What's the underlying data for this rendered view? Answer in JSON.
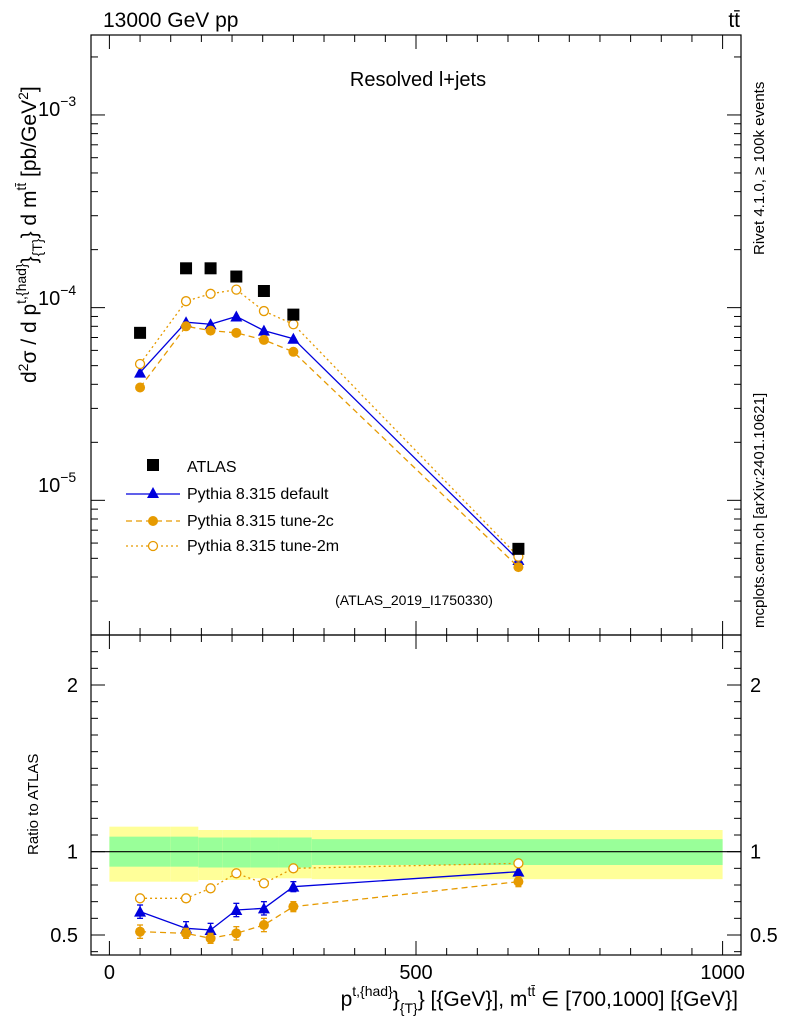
{
  "header": {
    "left": "13000 GeV pp",
    "right": "tt̄"
  },
  "side_labels": {
    "rivet": "Rivet 4.1.0, ≥ 100k events",
    "mcplots": "mcplots.cern.ch [arXiv:2401.10621]"
  },
  "colors": {
    "atlas": "#000000",
    "default": "#0000dd",
    "tune2c": "#e69a00",
    "tune2m": "#e69a00",
    "band_inner": "#99ff99",
    "band_outer": "#ffff99"
  },
  "chart_data": [
    {
      "type": "scatter",
      "title": "Resolved l+jets",
      "ylabel": "d²σ / d p^{t,{had}}_{T} d m^{tt̄} [pb/GeV²]",
      "yscale": "log",
      "ylim": [
        2e-06,
        0.0026
      ],
      "xlim": [
        -30,
        1030
      ],
      "ytick_labels": [
        "10^{-3}",
        "10^{-4}",
        "10^{-5}"
      ],
      "analysis_id": "(ATLAS_2019_I1750330)",
      "legend": [
        "ATLAS",
        "Pythia 8.315 default",
        "Pythia 8.315 tune-2c",
        "Pythia 8.315 tune-2m"
      ],
      "series": [
        {
          "name": "ATLAS",
          "marker": "square",
          "x": [
            50,
            125,
            165,
            207,
            252,
            300,
            667
          ],
          "y": [
            7.4e-05,
            0.00016,
            0.00016,
            0.000145,
            0.000122,
            9.2e-05,
            5.6e-06
          ]
        },
        {
          "name": "Pythia 8.315 default",
          "marker": "triangle",
          "line": "solid",
          "x": [
            50,
            125,
            165,
            207,
            252,
            300,
            667
          ],
          "y": [
            4.6e-05,
            8.4e-05,
            8.2e-05,
            9e-05,
            7.6e-05,
            6.9e-05,
            4.9e-06
          ]
        },
        {
          "name": "Pythia 8.315 tune-2c",
          "marker": "circle",
          "line": "dashed",
          "x": [
            50,
            125,
            165,
            207,
            252,
            300,
            667
          ],
          "y": [
            3.85e-05,
            8e-05,
            7.6e-05,
            7.4e-05,
            6.8e-05,
            5.9e-05,
            4.5e-06
          ]
        },
        {
          "name": "Pythia 8.315 tune-2m",
          "marker": "open-circle",
          "line": "dotted",
          "x": [
            50,
            125,
            165,
            207,
            252,
            300,
            667
          ],
          "y": [
            5.1e-05,
            0.000108,
            0.000118,
            0.000124,
            9.6e-05,
            8.2e-05,
            5.1e-06
          ]
        }
      ]
    },
    {
      "type": "scatter",
      "ylabel": "Ratio to ATLAS",
      "xlabel": "p^{t,{had}}_{T} [{GeV}], m^{tt̄} ∈ [700,1000] [{GeV}]",
      "ylim": [
        0.38,
        2.3
      ],
      "xlim": [
        -30,
        1030
      ],
      "yticks": [
        0.5,
        1,
        2
      ],
      "ytick_labels": [
        "0.5",
        "1",
        "2"
      ],
      "xticks": [
        0,
        500,
        1000
      ],
      "xtick_labels": [
        "0",
        "500",
        "1000"
      ],
      "bands": {
        "edges": [
          0,
          100,
          145,
          185,
          230,
          275,
          330,
          1000
        ],
        "inner": [
          [
            0.91,
            1.09
          ],
          [
            0.91,
            1.09
          ],
          [
            0.905,
            1.085
          ],
          [
            0.905,
            1.085
          ],
          [
            0.905,
            1.085
          ],
          [
            0.905,
            1.085
          ],
          [
            0.92,
            1.075
          ]
        ],
        "outer": [
          [
            0.82,
            1.15
          ],
          [
            0.82,
            1.15
          ],
          [
            0.83,
            1.13
          ],
          [
            0.83,
            1.13
          ],
          [
            0.84,
            1.13
          ],
          [
            0.84,
            1.13
          ],
          [
            0.835,
            1.13
          ]
        ]
      },
      "series": [
        {
          "name": "Pythia 8.315 default",
          "x": [
            50,
            125,
            165,
            207,
            252,
            300,
            667
          ],
          "y": [
            0.64,
            0.54,
            0.53,
            0.65,
            0.66,
            0.79,
            0.88
          ],
          "err": [
            0.04,
            0.04,
            0.04,
            0.04,
            0.04,
            0.03,
            0.03
          ]
        },
        {
          "name": "Pythia 8.315 tune-2c",
          "x": [
            50,
            125,
            165,
            207,
            252,
            300,
            667
          ],
          "y": [
            0.52,
            0.51,
            0.48,
            0.51,
            0.56,
            0.67,
            0.82
          ],
          "err": [
            0.04,
            0.03,
            0.03,
            0.04,
            0.04,
            0.03,
            0.03
          ]
        },
        {
          "name": "Pythia 8.315 tune-2m",
          "x": [
            50,
            125,
            165,
            207,
            252,
            300,
            667
          ],
          "y": [
            0.72,
            0.72,
            0.78,
            0.87,
            0.81,
            0.9,
            0.93
          ],
          "err": [
            0.0,
            0.0,
            0.0,
            0.0,
            0.0,
            0.0,
            0.02
          ]
        }
      ]
    }
  ]
}
